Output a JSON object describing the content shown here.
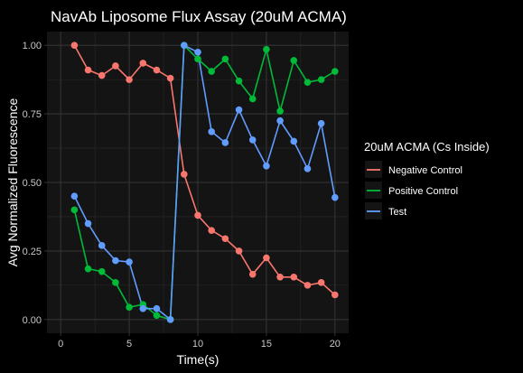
{
  "chart_data": {
    "type": "line",
    "title": "NavAb Liposome Flux Assay (20uM ACMA)",
    "xlabel": "Time(s)",
    "ylabel": "Avg Normalized Fluorescence",
    "xlim": [
      -1,
      21
    ],
    "ylim": [
      -0.05,
      1.05
    ],
    "xticks": [
      0,
      5,
      10,
      15,
      20
    ],
    "xtick_labels": [
      "0",
      "5",
      "10",
      "15",
      "20"
    ],
    "yticks": [
      0,
      0.25,
      0.5,
      0.75,
      1
    ],
    "ytick_labels": [
      "0.00",
      "0.25",
      "0.50",
      "0.75",
      "1.00"
    ],
    "grid": true,
    "legend": {
      "title": "20uM ACMA (Cs Inside)",
      "position": "right"
    },
    "series": [
      {
        "name": "Negative Control",
        "color": "#F8766D",
        "x": [
          1,
          2,
          3,
          4,
          5,
          6,
          7,
          8,
          9,
          10,
          11,
          12,
          13,
          14,
          15,
          16,
          17,
          18,
          19,
          20
        ],
        "y": [
          1.0,
          0.91,
          0.89,
          0.925,
          0.875,
          0.935,
          0.91,
          0.88,
          0.53,
          0.38,
          0.325,
          0.295,
          0.25,
          0.165,
          0.225,
          0.155,
          0.155,
          0.125,
          0.135,
          0.09
        ]
      },
      {
        "name": "Positive Control",
        "color": "#00BA38",
        "x": [
          1,
          2,
          3,
          4,
          5,
          6,
          7,
          8,
          9,
          10,
          11,
          12,
          13,
          14,
          15,
          16,
          17,
          18,
          19,
          20
        ],
        "y": [
          0.4,
          0.185,
          0.175,
          0.135,
          0.045,
          0.055,
          0.015,
          0.0,
          1.0,
          0.95,
          0.905,
          0.95,
          0.87,
          0.805,
          0.985,
          0.76,
          0.945,
          0.865,
          0.875,
          0.905
        ]
      },
      {
        "name": "Test",
        "color": "#619CFF",
        "x": [
          1,
          2,
          3,
          4,
          5,
          6,
          7,
          8,
          9,
          10,
          11,
          12,
          13,
          14,
          15,
          16,
          17,
          18,
          19,
          20
        ],
        "y": [
          0.45,
          0.35,
          0.27,
          0.215,
          0.21,
          0.04,
          0.04,
          0.0,
          1.0,
          0.975,
          0.685,
          0.645,
          0.765,
          0.655,
          0.56,
          0.725,
          0.65,
          0.55,
          0.715,
          0.445
        ]
      }
    ]
  }
}
